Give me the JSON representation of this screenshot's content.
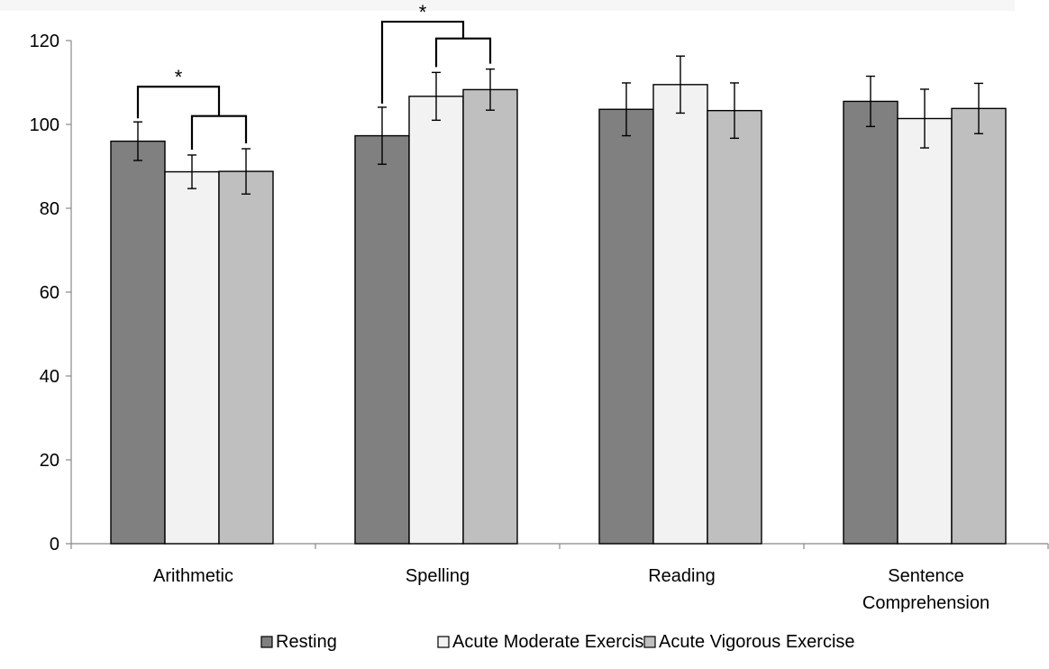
{
  "chart_data": {
    "type": "bar",
    "title": "",
    "xlabel": "",
    "ylabel": "",
    "ylim": [
      0,
      120
    ],
    "yticks": [
      0,
      20,
      40,
      60,
      80,
      100,
      120
    ],
    "grid": false,
    "legend_position": "bottom",
    "categories": [
      [
        "Arithmetic"
      ],
      [
        "Spelling"
      ],
      [
        "Reading"
      ],
      [
        "Sentence",
        "Comprehension"
      ]
    ],
    "series": [
      {
        "name": "Resting",
        "color": "#808080",
        "values": [
          96.0,
          97.3,
          103.6,
          105.5
        ],
        "errors": [
          4.6,
          6.8,
          6.3,
          6.0
        ]
      },
      {
        "name": "Acute Moderate Exercise",
        "color": "#f2f2f2",
        "values": [
          88.7,
          106.7,
          109.5,
          101.4
        ],
        "errors": [
          4.0,
          5.7,
          6.8,
          7.0
        ]
      },
      {
        "name": "Acute Vigorous Exercise",
        "color": "#bfbfbf",
        "values": [
          88.8,
          108.3,
          103.3,
          103.8
        ],
        "errors": [
          5.4,
          4.9,
          6.6,
          6.0
        ]
      }
    ],
    "significance": [
      {
        "category": 0,
        "label": "*",
        "from_series": 0,
        "to_pair": [
          1,
          2
        ],
        "outer_level": 109,
        "inner_level": 102
      },
      {
        "category": 1,
        "label": "*",
        "from_series": 0,
        "to_pair": [
          1,
          2
        ],
        "outer_level": 124.5,
        "inner_level": 120.5
      }
    ]
  }
}
